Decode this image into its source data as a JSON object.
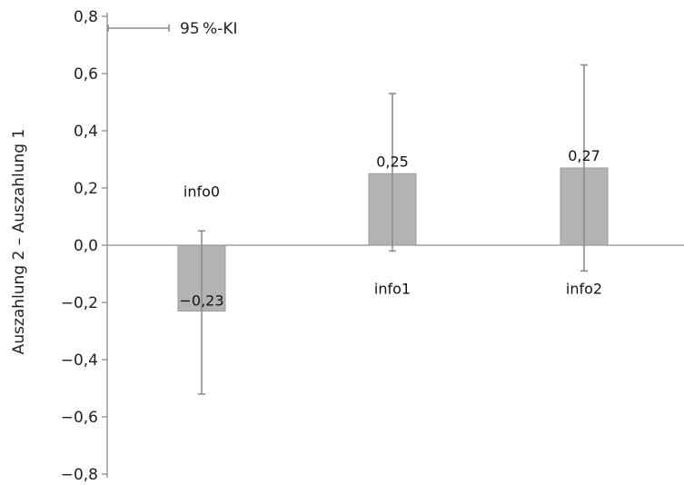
{
  "chart_data": {
    "type": "bar",
    "ylabel": "Auszahlung 2 – Auszahlung 1",
    "ylim": [
      -0.8,
      0.8
    ],
    "y_ticks": [
      0.8,
      0.6,
      0.4,
      0.2,
      0.0,
      -0.2,
      -0.4,
      -0.6,
      -0.8
    ],
    "y_tick_labels": [
      "0,8",
      "0,6",
      "0,4",
      "0,2",
      "0,0",
      "−0,2",
      "−0,4",
      "−0,6",
      "−0,8"
    ],
    "categories": [
      "info0",
      "info1",
      "info2"
    ],
    "values": [
      -0.23,
      0.25,
      0.27
    ],
    "value_labels": [
      "−0,23",
      "0,25",
      "0,27"
    ],
    "ci_low": [
      -0.52,
      -0.02,
      -0.09
    ],
    "ci_high": [
      0.05,
      0.53,
      0.63
    ],
    "legend": {
      "label": "95 %-KI",
      "placement": "top-left"
    },
    "colors": {
      "bar": "#b3b3b3",
      "bar_stroke": "#9a9a9a",
      "error_bar": "#8c8c8c",
      "axis": "#8c8c8c"
    }
  }
}
